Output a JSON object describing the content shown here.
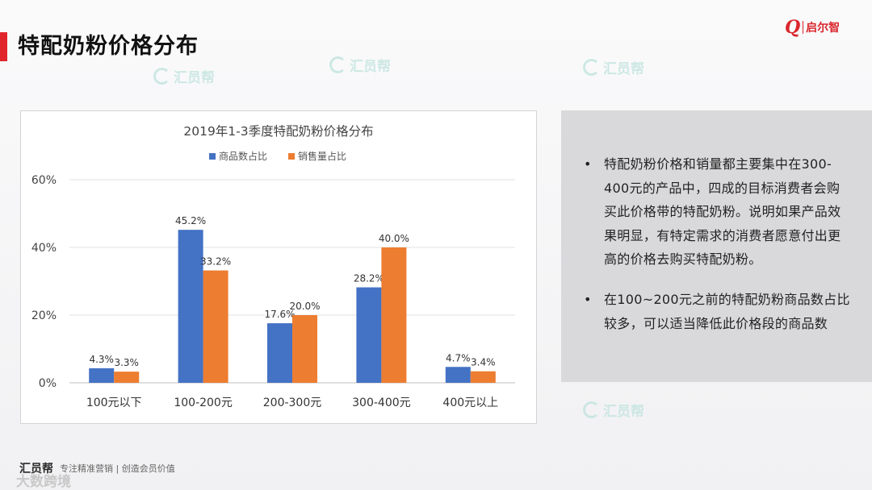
{
  "header": {
    "title": "特配奶粉价格分布",
    "logo_mark": "Q",
    "logo_text": "启尔智"
  },
  "watermark_text": "汇员帮",
  "chart_data": {
    "type": "bar",
    "title": "2019年1-3季度特配奶粉价格分布",
    "categories": [
      "100元以下",
      "100-200元",
      "200-300元",
      "300-400元",
      "400元以上"
    ],
    "series": [
      {
        "name": "商品数占比",
        "color": "#4472c4",
        "values": [
          4.3,
          45.2,
          17.6,
          28.2,
          4.7
        ],
        "labels": [
          "4.3%",
          "45.2%",
          "17.6%",
          "28.2%",
          "4.7%"
        ]
      },
      {
        "name": "销售量占比",
        "color": "#ed7d31",
        "values": [
          3.3,
          33.2,
          20.0,
          40.0,
          3.4
        ],
        "labels": [
          "3.3%",
          "33.2%",
          "20.0%",
          "40.0%",
          "3.4%"
        ]
      }
    ],
    "ylim": [
      0,
      60
    ],
    "yticks": [
      0,
      20,
      40,
      60
    ],
    "ytick_labels": [
      "0%",
      "20%",
      "40%",
      "60%"
    ],
    "legend_position": "top-center",
    "grid": true
  },
  "panel": {
    "bullets": [
      {
        "symbol": "•",
        "text": "特配奶粉价格和销量都主要集中在300-400元的产品中，四成的目标消费者会购买此价格带的特配奶粉。说明如果产品效果明显，有特定需求的消费者愿意付出更高的价格去购买特配奶粉。"
      },
      {
        "symbol": "•",
        "text": "在100~200元之前的特配奶粉商品数占比较多，可以适当降低此价格段的商品数"
      }
    ]
  },
  "footer": {
    "brand": "汇员帮",
    "tagline": "专注精准营销 | 创造会员价值",
    "source_watermark": "大数跨境"
  }
}
